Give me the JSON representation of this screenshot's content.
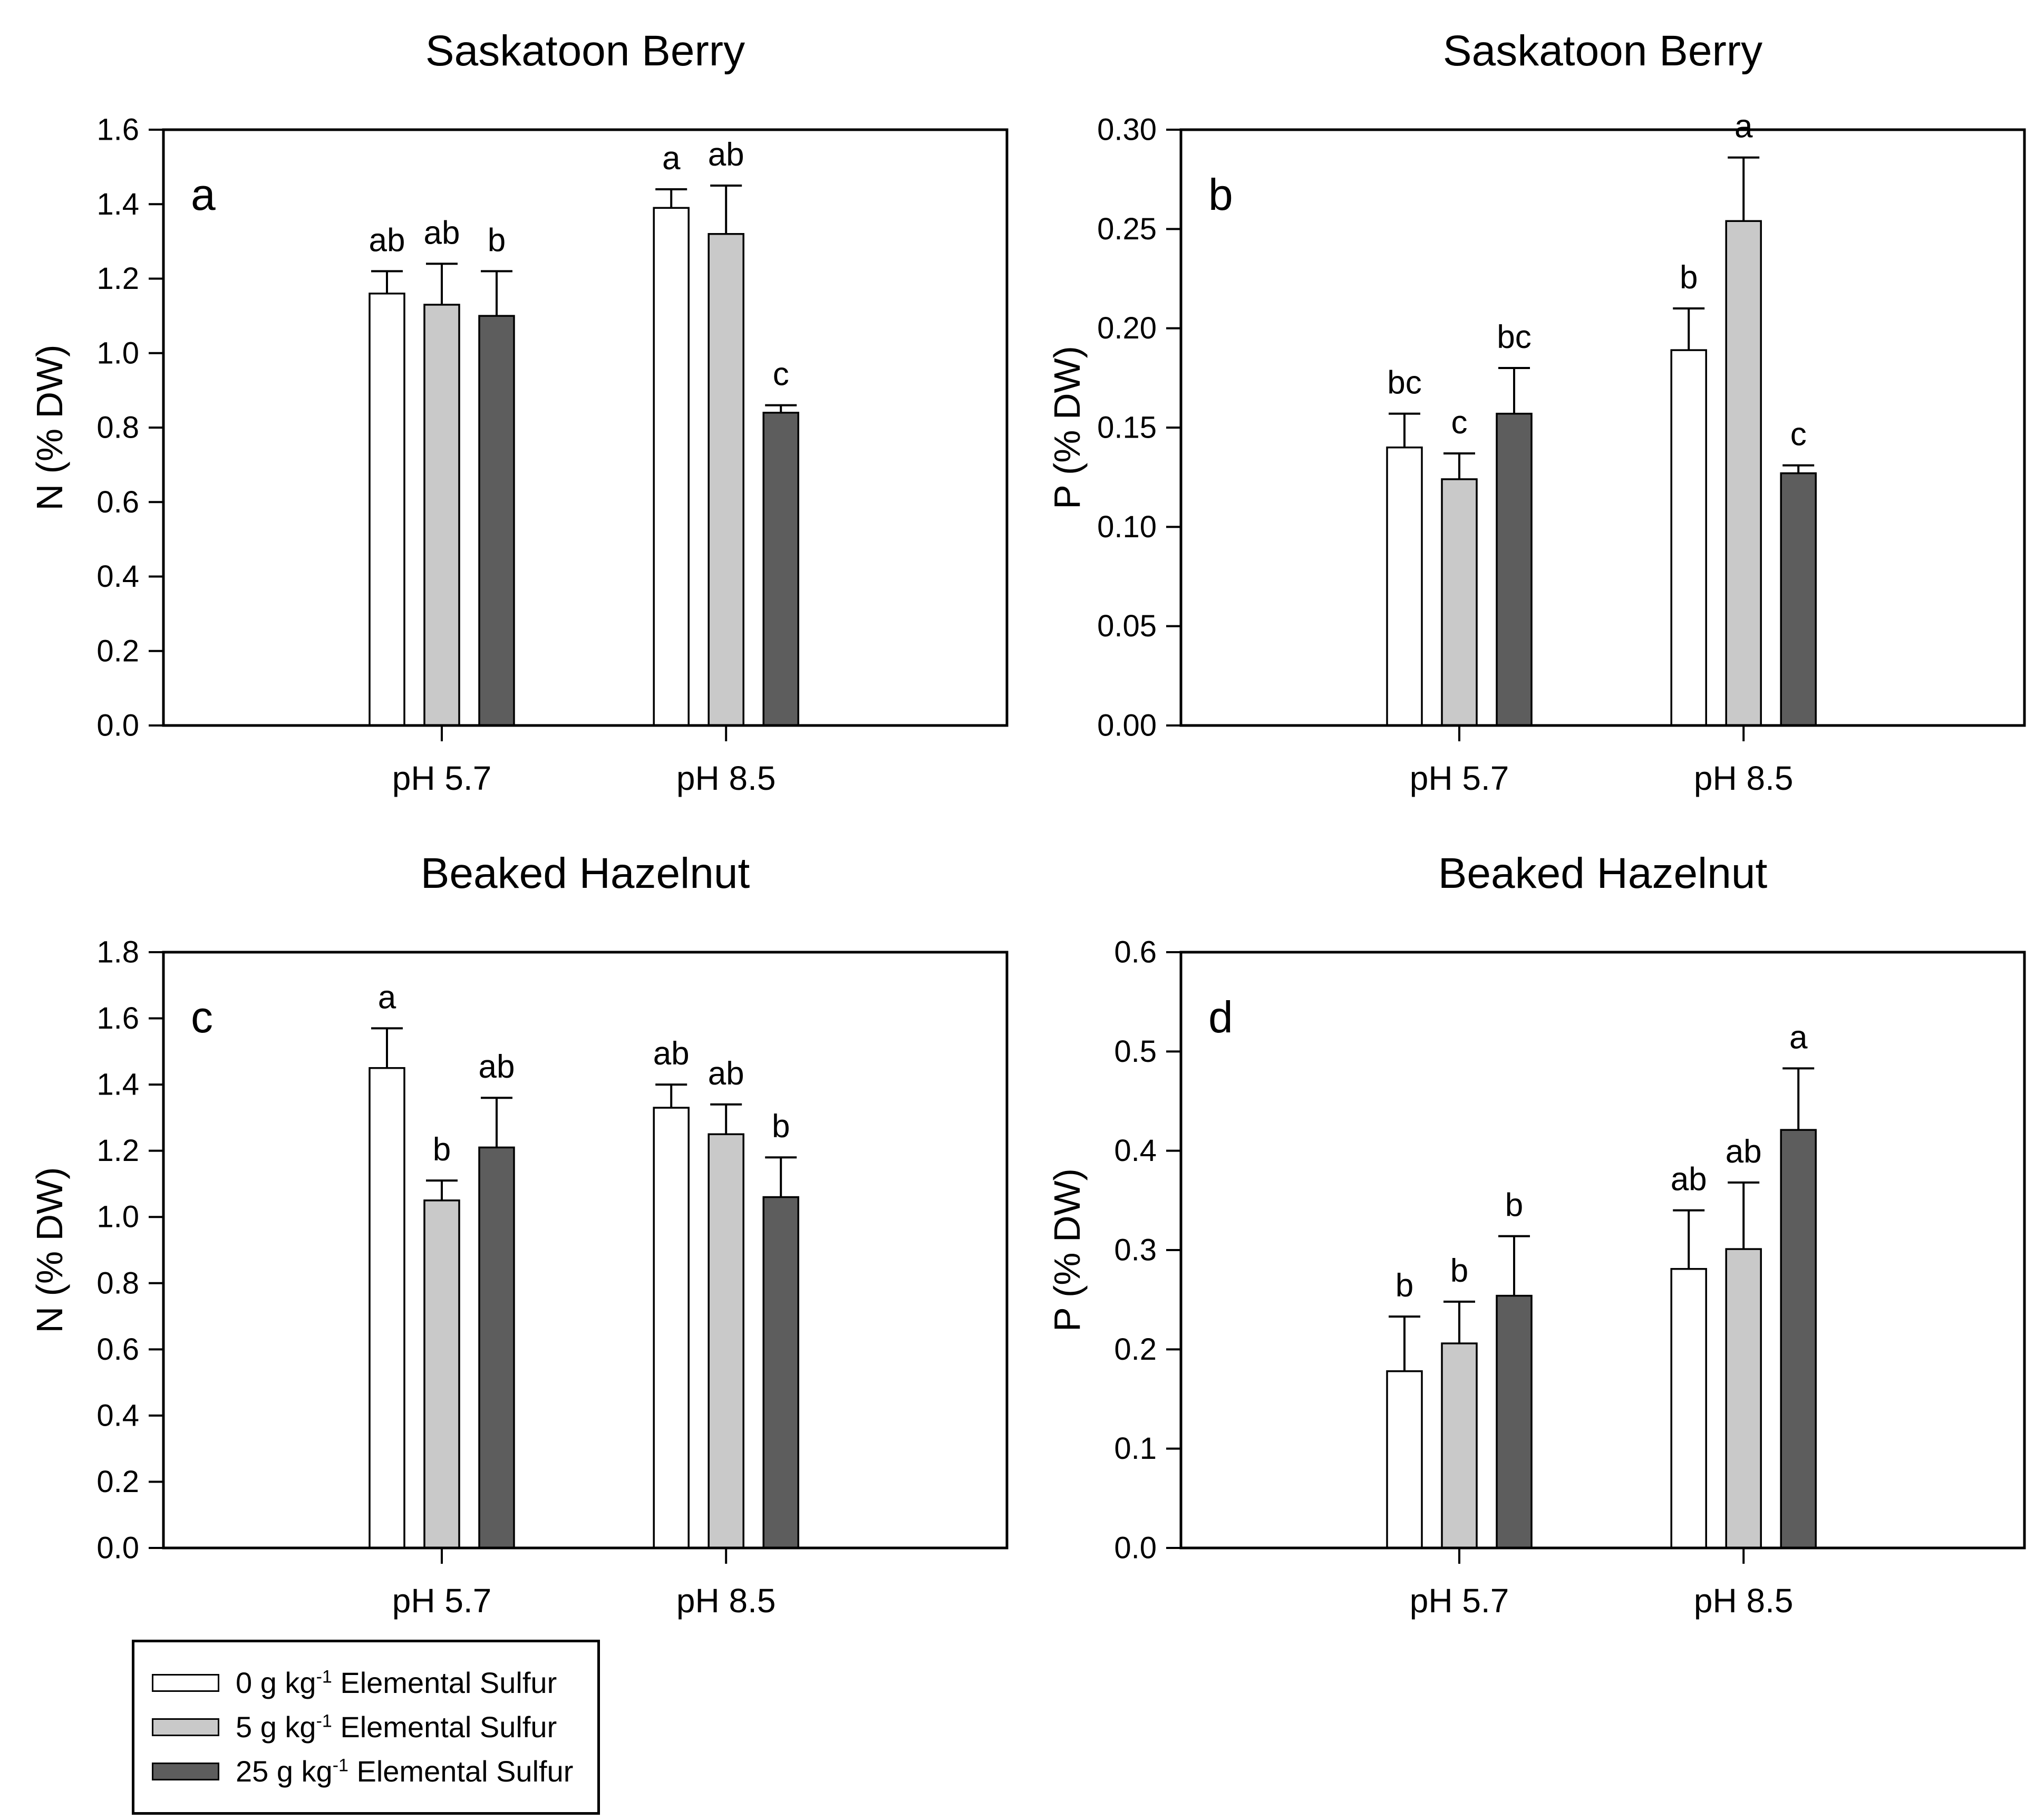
{
  "figure": {
    "background": "#ffffff",
    "bar_outline_color": "#000000",
    "error_bar_style": "upper, capped"
  },
  "legend": {
    "items": [
      {
        "key": "sulfur-0",
        "pre": "0 g kg",
        "sup": "-1",
        "post": " Elemental Sulfur",
        "color": "#ffffff"
      },
      {
        "key": "sulfur-5",
        "pre": "5 g kg",
        "sup": "-1",
        "post": " Elemental Sulfur",
        "color": "#c9c9c9"
      },
      {
        "key": "sulfur-25",
        "pre": "25 g kg",
        "sup": "-1",
        "post": " Elemental Sulfur",
        "color": "#5d5d5d"
      }
    ]
  },
  "chart_data": [
    {
      "type": "bar",
      "panel_letter": "a",
      "title": "Saskatoon Berry",
      "ylabel": "N (% DW)",
      "xlabel": "",
      "grid": false,
      "legend_position": "separate-box-bottom-left",
      "categories": [
        "pH 5.7",
        "pH 8.5"
      ],
      "ylim": [
        0,
        1.6
      ],
      "ytick_vals": [
        0,
        0.2,
        0.4,
        0.6,
        0.8,
        1.0,
        1.2,
        1.4,
        1.6
      ],
      "ytick_labels": [
        "0.0",
        "0.2",
        "0.4",
        "0.6",
        "0.8",
        "1.0",
        "1.2",
        "1.4",
        "1.6"
      ],
      "series": [
        {
          "name": "0 g kg-1 Elemental Sulfur",
          "color": "#ffffff",
          "values": [
            1.16,
            1.39
          ],
          "err_top": [
            1.22,
            1.44
          ],
          "sig": [
            "ab",
            "a"
          ]
        },
        {
          "name": "5 g kg-1 Elemental Sulfur",
          "color": "#c9c9c9",
          "values": [
            1.13,
            1.32
          ],
          "err_top": [
            1.24,
            1.45
          ],
          "sig": [
            "ab",
            "ab"
          ]
        },
        {
          "name": "25 g kg-1 Elemental Sulfur",
          "color": "#5d5d5d",
          "values": [
            1.1,
            0.84
          ],
          "err_top": [
            1.22,
            0.86
          ],
          "sig": [
            "b",
            "c"
          ]
        }
      ]
    },
    {
      "type": "bar",
      "panel_letter": "b",
      "title": "Saskatoon Berry",
      "ylabel": "P (% DW)",
      "xlabel": "",
      "grid": false,
      "legend_position": "separate-box-bottom-left",
      "categories": [
        "pH 5.7",
        "pH 8.5"
      ],
      "ylim": [
        0,
        0.3
      ],
      "ytick_vals": [
        0,
        0.05,
        0.1,
        0.15,
        0.2,
        0.25,
        0.3
      ],
      "ytick_labels": [
        "0.00",
        "0.05",
        "0.10",
        "0.15",
        "0.20",
        "0.25",
        "0.30"
      ],
      "series": [
        {
          "name": "0 g kg-1 Elemental Sulfur",
          "color": "#ffffff",
          "values": [
            0.14,
            0.189
          ],
          "err_top": [
            0.157,
            0.21
          ],
          "sig": [
            "bc",
            "b"
          ]
        },
        {
          "name": "5 g kg-1 Elemental Sulfur",
          "color": "#c9c9c9",
          "values": [
            0.124,
            0.254
          ],
          "err_top": [
            0.137,
            0.286
          ],
          "sig": [
            "c",
            "a"
          ]
        },
        {
          "name": "25 g kg-1 Elemental Sulfur",
          "color": "#5d5d5d",
          "values": [
            0.157,
            0.127
          ],
          "err_top": [
            0.18,
            0.131
          ],
          "sig": [
            "bc",
            "c"
          ]
        }
      ]
    },
    {
      "type": "bar",
      "panel_letter": "c",
      "title": "Beaked Hazelnut",
      "ylabel": "N (% DW)",
      "xlabel": "",
      "grid": false,
      "legend_position": "separate-box-bottom-left",
      "categories": [
        "pH 5.7",
        "pH 8.5"
      ],
      "ylim": [
        0,
        1.8
      ],
      "ytick_vals": [
        0,
        0.2,
        0.4,
        0.6,
        0.8,
        1.0,
        1.2,
        1.4,
        1.6,
        1.8
      ],
      "ytick_labels": [
        "0.0",
        "0.2",
        "0.4",
        "0.6",
        "0.8",
        "1.0",
        "1.2",
        "1.4",
        "1.6",
        "1.8"
      ],
      "series": [
        {
          "name": "0 g kg-1 Elemental Sulfur",
          "color": "#ffffff",
          "values": [
            1.45,
            1.33
          ],
          "err_top": [
            1.57,
            1.4
          ],
          "sig": [
            "a",
            "ab"
          ]
        },
        {
          "name": "5 g kg-1 Elemental Sulfur",
          "color": "#c9c9c9",
          "values": [
            1.05,
            1.25
          ],
          "err_top": [
            1.11,
            1.34
          ],
          "sig": [
            "b",
            "ab"
          ]
        },
        {
          "name": "25 g kg-1 Elemental Sulfur",
          "color": "#5d5d5d",
          "values": [
            1.21,
            1.06
          ],
          "err_top": [
            1.36,
            1.18
          ],
          "sig": [
            "ab",
            "b"
          ]
        }
      ]
    },
    {
      "type": "bar",
      "panel_letter": "d",
      "title": "Beaked Hazelnut",
      "ylabel": "P (% DW)",
      "xlabel": "",
      "grid": false,
      "legend_position": "separate-box-bottom-left",
      "categories": [
        "pH 5.7",
        "pH 8.5"
      ],
      "ylim": [
        0,
        0.6
      ],
      "ytick_vals": [
        0,
        0.1,
        0.2,
        0.3,
        0.4,
        0.5,
        0.6
      ],
      "ytick_labels": [
        "0.0",
        "0.1",
        "0.2",
        "0.3",
        "0.4",
        "0.5",
        "0.6"
      ],
      "series": [
        {
          "name": "0 g kg-1 Elemental Sulfur",
          "color": "#ffffff",
          "values": [
            0.178,
            0.281
          ],
          "err_top": [
            0.233,
            0.34
          ],
          "sig": [
            "b",
            "ab"
          ]
        },
        {
          "name": "5 g kg-1 Elemental Sulfur",
          "color": "#c9c9c9",
          "values": [
            0.206,
            0.301
          ],
          "err_top": [
            0.248,
            0.368
          ],
          "sig": [
            "b",
            "ab"
          ]
        },
        {
          "name": "25 g kg-1 Elemental Sulfur",
          "color": "#5d5d5d",
          "values": [
            0.254,
            0.421
          ],
          "err_top": [
            0.314,
            0.483
          ],
          "sig": [
            "b",
            "a"
          ]
        }
      ]
    }
  ]
}
